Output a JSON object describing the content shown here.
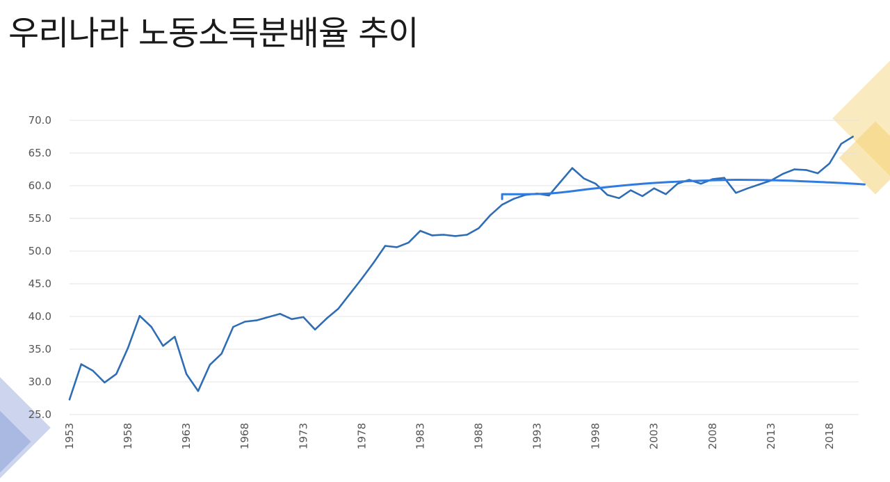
{
  "slide": {
    "title": "우리나라 노동소득분배율 추이"
  },
  "colors": {
    "series": "#2e6db4",
    "trend": "#2f7be0",
    "grid": "#e3e3e3",
    "tick_text": "#555555",
    "deco_gold": "#f5d98a",
    "deco_blue": "#7f96d2"
  },
  "chart_data": {
    "type": "line",
    "title": "",
    "xlabel": "",
    "ylabel": "",
    "ylim": [
      25,
      70
    ],
    "y_ticks": [
      "25.0",
      "30.0",
      "35.0",
      "40.0",
      "45.0",
      "50.0",
      "55.0",
      "60.0",
      "65.0",
      "70.0"
    ],
    "x_ticks": [
      "1953",
      "1958",
      "1963",
      "1968",
      "1973",
      "1978",
      "1983",
      "1988",
      "1993",
      "1998",
      "2003",
      "2008",
      "2013",
      "2018"
    ],
    "grid": true,
    "legend": "none",
    "series": [
      {
        "x": [
          1953,
          1954,
          1955,
          1956,
          1957,
          1958,
          1959,
          1960,
          1961,
          1962,
          1963,
          1964,
          1965,
          1966,
          1967,
          1968,
          1969,
          1970,
          1971,
          1972,
          1973,
          1974,
          1975,
          1976,
          1977,
          1978,
          1979,
          1980,
          1981,
          1982,
          1983,
          1984,
          1985,
          1986,
          1987,
          1988,
          1989,
          1990,
          1991,
          1992,
          1993,
          1994,
          1995,
          1996,
          1997,
          1998,
          1999,
          2000,
          2001,
          2002,
          2003,
          2004,
          2005,
          2006,
          2007,
          2008,
          2009,
          2010,
          2011,
          2012,
          2013,
          2014,
          2015,
          2016,
          2017,
          2018,
          2019,
          2020
        ],
        "values": [
          27.3,
          32.7,
          31.7,
          29.9,
          31.2,
          35.2,
          40.1,
          38.4,
          35.5,
          36.9,
          31.2,
          28.6,
          32.6,
          34.3,
          38.4,
          39.2,
          39.4,
          39.9,
          40.4,
          39.6,
          39.9,
          38.0,
          39.7,
          41.2,
          43.5,
          45.8,
          48.2,
          50.8,
          50.6,
          51.3,
          53.1,
          52.4,
          52.5,
          52.3,
          52.5,
          53.5,
          55.5,
          57.1,
          58.0,
          58.6,
          58.8,
          58.5,
          60.6,
          62.7,
          61.1,
          60.3,
          58.6,
          58.1,
          59.3,
          58.4,
          59.6,
          58.7,
          60.3,
          60.9,
          60.3,
          61.0,
          61.2,
          58.9,
          59.6,
          60.2,
          60.8,
          61.8,
          62.5,
          62.4,
          61.9,
          63.4,
          66.4,
          67.5
        ]
      },
      {
        "x": [
          1990,
          1994,
          1998,
          2002,
          2006,
          2010,
          2014,
          2018,
          2021
        ],
        "values": [
          58.7,
          58.8,
          59.6,
          60.3,
          60.7,
          60.9,
          60.8,
          60.5,
          60.2
        ]
      }
    ]
  }
}
